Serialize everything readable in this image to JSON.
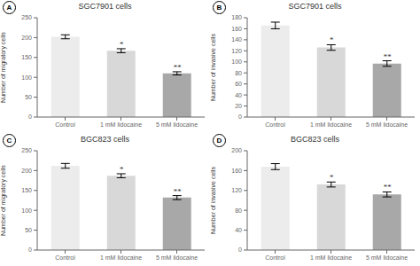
{
  "chart_data": [
    {
      "type": "bar",
      "panel_label": "A",
      "title": "SGC7901 cells",
      "ylabel": "Number of migratory cells",
      "categories": [
        "Control",
        "1 mM lidocaine",
        "5 mM lidocaine"
      ],
      "values": [
        202,
        167,
        110
      ],
      "errors": [
        5,
        5,
        4
      ],
      "significance": [
        null,
        "*",
        "**"
      ],
      "colors": [
        "#ececec",
        "#d8d8d8",
        "#a8a8a8"
      ],
      "ylim": [
        0,
        250
      ],
      "yticks": [
        0,
        50,
        100,
        150,
        200,
        250
      ],
      "grid": false
    },
    {
      "type": "bar",
      "panel_label": "B",
      "title": "SGC7901 cells",
      "ylabel": "Number of invasive cells",
      "categories": [
        "Control",
        "1 mM lidocaine",
        "5 mM lidocaine"
      ],
      "values": [
        166,
        126,
        97
      ],
      "errors": [
        6,
        5,
        5
      ],
      "significance": [
        null,
        "*",
        "**"
      ],
      "colors": [
        "#ececec",
        "#d8d8d8",
        "#a8a8a8"
      ],
      "ylim": [
        0,
        180
      ],
      "yticks": [
        0,
        20,
        40,
        60,
        80,
        100,
        120,
        140,
        160,
        180
      ],
      "grid": false
    },
    {
      "type": "bar",
      "panel_label": "C",
      "title": "BGC823 cells",
      "ylabel": "Number of migratory cells",
      "categories": [
        "Control",
        "1 mM lidocaine",
        "5 mM lidocaine"
      ],
      "values": [
        212,
        187,
        132
      ],
      "errors": [
        6,
        5,
        5
      ],
      "significance": [
        null,
        "*",
        "**"
      ],
      "colors": [
        "#ececec",
        "#d8d8d8",
        "#a8a8a8"
      ],
      "ylim": [
        0,
        250
      ],
      "yticks": [
        0,
        50,
        100,
        150,
        200,
        250
      ],
      "grid": false
    },
    {
      "type": "bar",
      "panel_label": "D",
      "title": "BGC823 cells",
      "ylabel": "Number of invasive cells",
      "categories": [
        "Control",
        "1 mM lidocaine",
        "5 mM lidocaine"
      ],
      "values": [
        168,
        132,
        112
      ],
      "errors": [
        6,
        5,
        5
      ],
      "significance": [
        null,
        "*",
        "**"
      ],
      "colors": [
        "#ececec",
        "#d8d8d8",
        "#a8a8a8"
      ],
      "ylim": [
        0,
        200
      ],
      "yticks": [
        0,
        40,
        80,
        120,
        160,
        200
      ],
      "grid": false
    }
  ]
}
